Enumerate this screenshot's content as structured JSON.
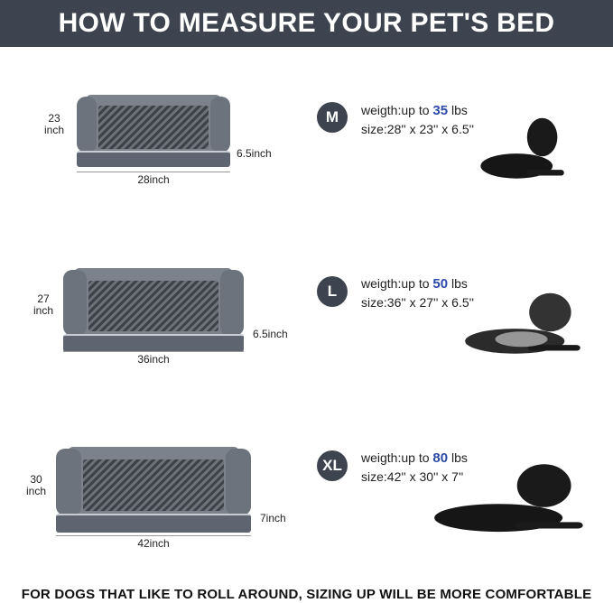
{
  "title": "HOW TO MEASURE YOUR PET'S BED",
  "sizes": [
    {
      "badge": "M",
      "weight_prefix": "weigth:up to",
      "weight": "35",
      "weight_unit": "lbs",
      "size": "size:28'' x 23'' x 6.5''",
      "depth_label": "23\ninch",
      "width_label": "28inch",
      "height_label": "6.5inch",
      "dog": "french-bulldog"
    },
    {
      "badge": "L",
      "weight_prefix": "weigth:up to",
      "weight": "50",
      "weight_unit": "lbs",
      "size": "size:36'' x 27'' x 6.5''",
      "depth_label": "27\ninch",
      "width_label": "36inch",
      "height_label": "6.5inch",
      "dog": "spaniel"
    },
    {
      "badge": "XL",
      "weight_prefix": "weigth:up to",
      "weight": "80",
      "weight_unit": "lbs",
      "size": "size:42'' x 30'' x 7''",
      "depth_label": "30\ninch",
      "width_label": "42inch",
      "height_label": "7inch",
      "dog": "black-labrador"
    }
  ],
  "footer": "FOR DOGS THAT LIKE TO ROLL AROUND, SIZING UP WILL BE MORE COMFORTABLE",
  "colors": {
    "header": "#3e444f",
    "accent": "#2b4aa8"
  }
}
